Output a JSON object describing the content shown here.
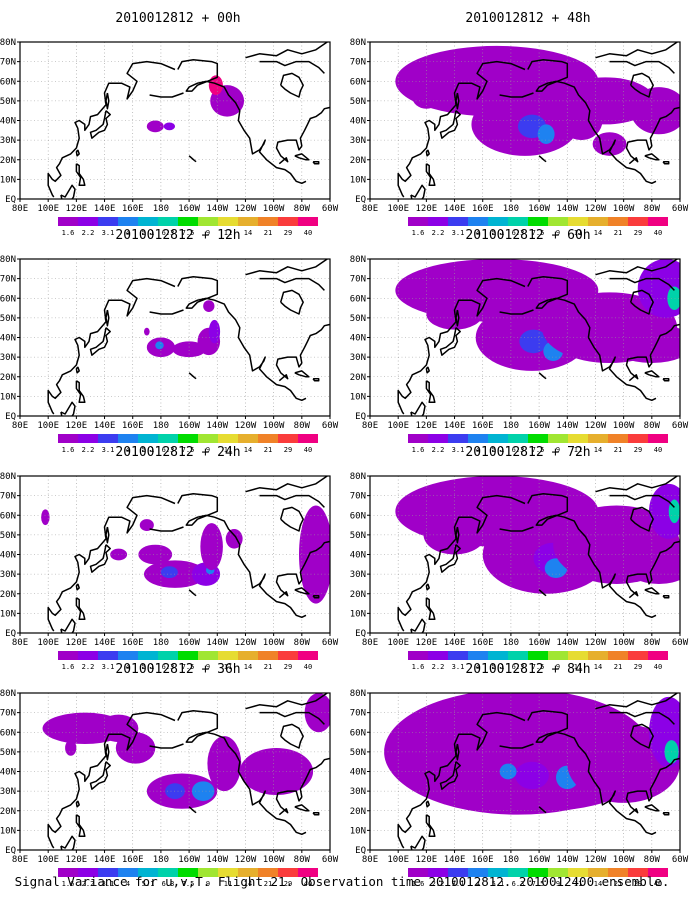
{
  "figure": {
    "caption": "Signal Variance for u,v,T. Flight 21. Observation time 2010012812. 2010012400 ensemble."
  },
  "lon_ticks": [
    "80E",
    "100E",
    "120E",
    "140E",
    "160E",
    "180",
    "160W",
    "140W",
    "120W",
    "100W",
    "80W",
    "60W"
  ],
  "lat_ticks": [
    "80N",
    "70N",
    "60N",
    "50N",
    "40N",
    "30N",
    "20N",
    "10N",
    "EQ"
  ],
  "colorbar": {
    "labels": [
      "1.6",
      "2.2",
      "3.1",
      "4",
      "5.1",
      "6.3",
      "7.5",
      "9",
      "11",
      "14",
      "21",
      "29",
      "40"
    ],
    "colors": [
      "#a000c8",
      "#8c00e6",
      "#3c3cf0",
      "#1e82f0",
      "#00b4d2",
      "#00d2aa",
      "#00dc00",
      "#a0e632",
      "#e6dc32",
      "#e6af2d",
      "#f08228",
      "#fa3c3c",
      "#f00082"
    ]
  },
  "panels": [
    {
      "title": "2010012812 + 00h",
      "lead": "00h",
      "lead_index": 0
    },
    {
      "title": "2010012812 + 48h",
      "lead": "48h",
      "lead_index": 4
    },
    {
      "title": "2010012812 + 12h",
      "lead": "12h",
      "lead_index": 1
    },
    {
      "title": "2010012812 + 60h",
      "lead": "60h",
      "lead_index": 5
    },
    {
      "title": "2010012812 + 24h",
      "lead": "24h",
      "lead_index": 2
    },
    {
      "title": "2010012812 + 72h",
      "lead": "72h",
      "lead_index": 6
    },
    {
      "title": "2010012812 + 36h",
      "lead": "36h",
      "lead_index": 3
    },
    {
      "title": "2010012812 + 84h",
      "lead": "84h",
      "lead_index": 7
    }
  ],
  "map": {
    "projection": "cylindrical",
    "lon_range": [
      "80E",
      "60W"
    ],
    "lat_range": [
      "EQ",
      "80N"
    ],
    "grid": "dotted"
  }
}
